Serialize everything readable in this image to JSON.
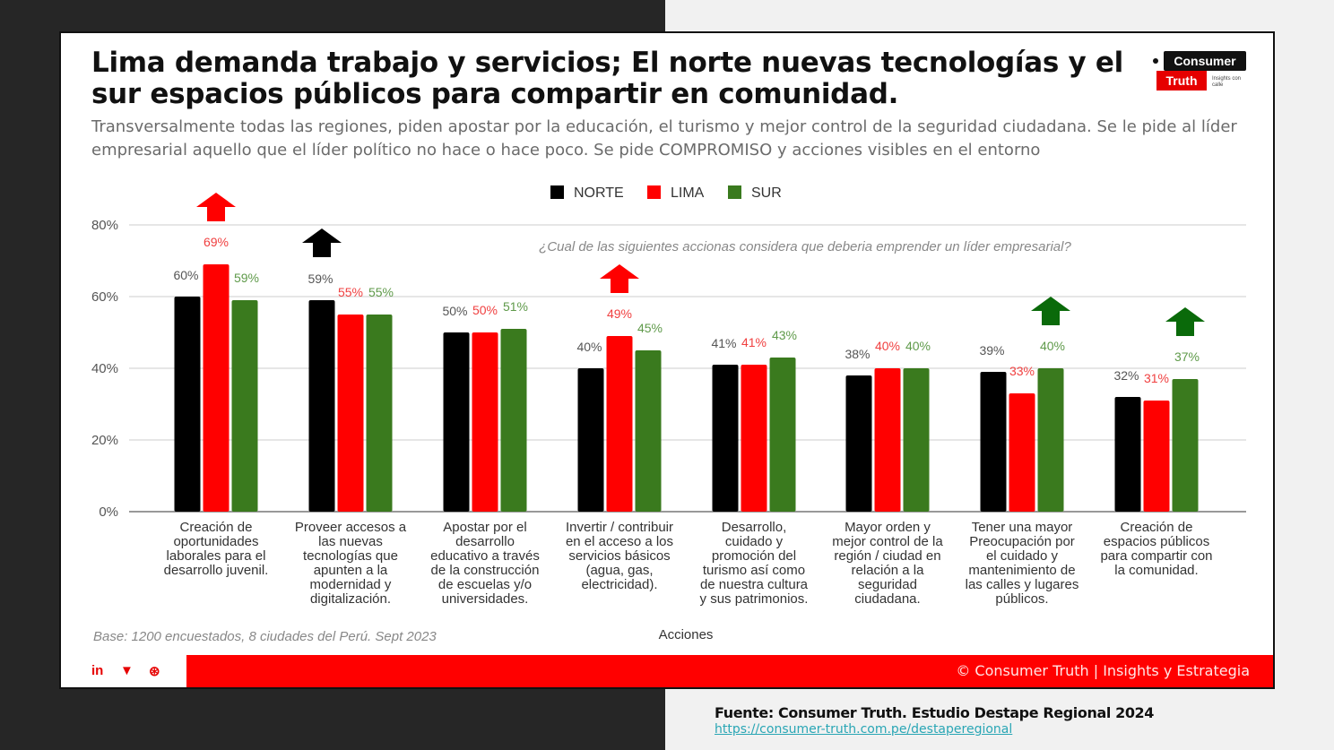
{
  "header": {
    "title": "Lima demanda trabajo y servicios; El norte nuevas tecnologías y el sur espacios públicos para compartir en comunidad.",
    "subtitle": "Transversalmente todas las regiones, piden apostar por la educación, el turismo y mejor control de la seguridad ciudadana. Se le pide al líder empresarial aquello que el líder político no hace o hace poco. Se pide COMPROMISO y acciones visibles en el entorno"
  },
  "logo": {
    "line1": "Consumer",
    "line2": "Truth",
    "tagline": "Insights con calle"
  },
  "footer": {
    "copyright": "© Consumer Truth | Insights y Estrategia",
    "social": [
      {
        "icon": "linkedin-icon",
        "glyph": "in"
      },
      {
        "icon": "twitter-icon",
        "glyph": "🐦"
      },
      {
        "icon": "dribbble-icon",
        "glyph": "⊛"
      }
    ]
  },
  "source": {
    "text": "Fuente: Consumer Truth. Estudio Destape Regional 2024",
    "url": "https://consumer-truth.com.pe/destaperegional"
  },
  "colors": {
    "norte": "#000000",
    "lima": "#ff0000",
    "sur": "#3a7a1e",
    "arrow_sur": "#0a6a0a",
    "label_norte": "#555555",
    "label_lima": "#f04040",
    "label_sur": "#5f9a4a"
  },
  "chart_data": {
    "type": "bar",
    "title": "¿Cual de las siguientes accionas considera que deberia emprender un líder empresarial?",
    "xlabel": "Acciones",
    "ylabel": "",
    "ylim": [
      0,
      80
    ],
    "yticks": [
      "0%",
      "20%",
      "40%",
      "60%",
      "80%"
    ],
    "ytick_values": [
      0,
      20,
      40,
      60,
      80
    ],
    "grid": true,
    "legend_position": "top-center",
    "note": "Base: 1200 encuestados, 8 ciudades del Perú. Sept 2023",
    "categories": [
      "Creación de oportunidades laborales para el desarrollo juvenil.",
      "Proveer accesos a las nuevas tecnologías que apunten a la modernidad y digitalización.",
      "Apostar por el desarrollo educativo a través de la construcción de escuelas y/o universidades.",
      "Invertir / contribuir en el acceso a los servicios básicos (agua, gas, electricidad).",
      "Desarrollo, cuidado y promoción del turismo así como de nuestra cultura y sus patrimonios.",
      "Mayor orden y mejor control de la región / ciudad en relación a la seguridad ciudadana.",
      "Tener una mayor Preocupación por el cuidado y mantenimiento de las calles y lugares públicos.",
      "Creación de espacios públicos para compartir con la comunidad."
    ],
    "category_lines": [
      [
        "Creación de",
        "oportunidades",
        "laborales para el",
        "desarrollo juvenil."
      ],
      [
        "Proveer accesos a",
        "las nuevas",
        "tecnologías que",
        "apunten a la",
        "modernidad y",
        "digitalización."
      ],
      [
        "Apostar por el",
        "desarrollo",
        "educativo a través",
        "de la construcción",
        "de escuelas y/o",
        "universidades."
      ],
      [
        "Invertir / contribuir",
        "en el acceso a los",
        "servicios básicos",
        "(agua, gas,",
        "electricidad)."
      ],
      [
        "Desarrollo,",
        "cuidado y",
        "promoción del",
        "turismo así como",
        "de nuestra cultura",
        "y sus patrimonios."
      ],
      [
        "Mayor orden y",
        "mejor control de la",
        "región / ciudad en",
        "relación a la",
        "seguridad",
        "ciudadana."
      ],
      [
        "Tener una mayor",
        "Preocupación por",
        "el cuidado y",
        "mantenimiento de",
        "las calles y lugares",
        "públicos."
      ],
      [
        "Creación de",
        "espacios públicos",
        "para compartir con",
        "la comunidad."
      ]
    ],
    "series": [
      {
        "name": "NORTE",
        "values": [
          60,
          59,
          50,
          40,
          41,
          38,
          39,
          32
        ],
        "labels": [
          "60%",
          "59%",
          "50%",
          "40%",
          "41%",
          "38%",
          "39%",
          "32%"
        ]
      },
      {
        "name": "LIMA",
        "values": [
          69,
          55,
          50,
          49,
          41,
          40,
          33,
          31
        ],
        "labels": [
          "69%",
          "55%",
          "50%",
          "49%",
          "41%",
          "40%",
          "33%",
          "31%"
        ]
      },
      {
        "name": "SUR",
        "values": [
          59,
          55,
          51,
          45,
          43,
          40,
          40,
          37
        ],
        "labels": [
          "59%",
          "55%",
          "51%",
          "45%",
          "43%",
          "40%",
          "40%",
          "37%"
        ]
      }
    ],
    "highlight_arrows": [
      {
        "category_index": 0,
        "series": "LIMA"
      },
      {
        "category_index": 1,
        "series": "NORTE"
      },
      {
        "category_index": 3,
        "series": "LIMA"
      },
      {
        "category_index": 6,
        "series": "SUR"
      },
      {
        "category_index": 7,
        "series": "SUR"
      }
    ]
  }
}
